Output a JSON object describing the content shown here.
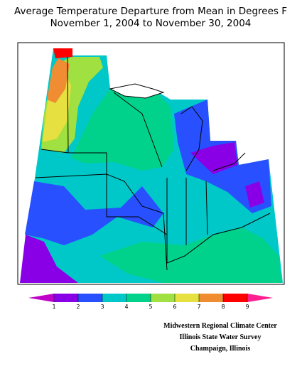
{
  "title": [
    "Average Temperature Departure from Mean in Degrees F",
    "November 1, 2004 to November 30, 2004"
  ],
  "legend": {
    "ticks": [
      1,
      2,
      3,
      4,
      5,
      6,
      7,
      8,
      9
    ],
    "colors": [
      "#c000c8",
      "#8a00e6",
      "#2850ff",
      "#00c8c8",
      "#00d28c",
      "#a0e040",
      "#e6e040",
      "#f08c32",
      "#ff0000",
      "#ff2090"
    ]
  },
  "credits": [
    "Midwestern Regional Climate Center",
    "Illinois State Water Survey",
    "Champaign, Illinois"
  ]
}
